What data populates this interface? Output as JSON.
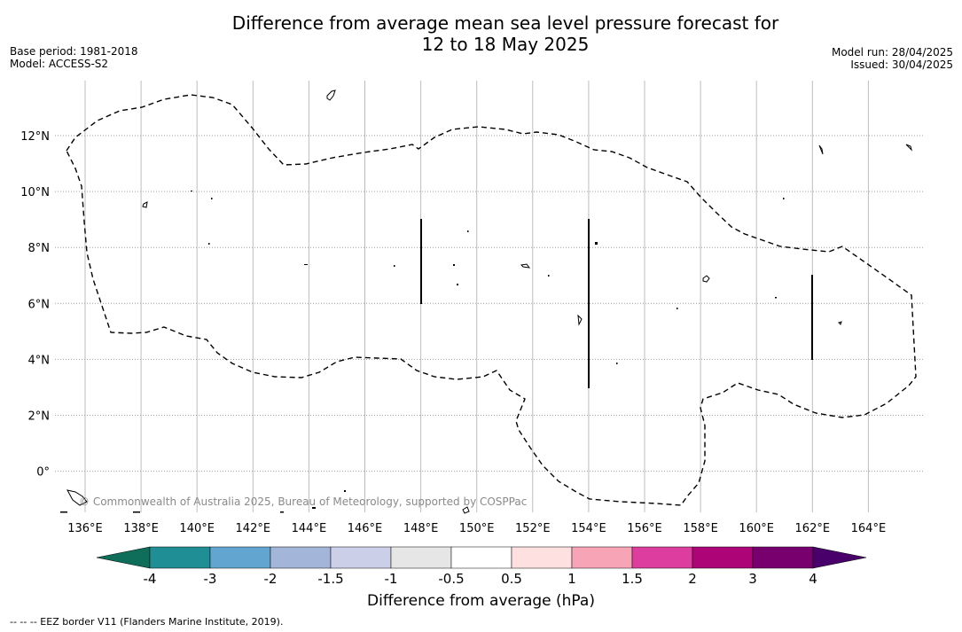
{
  "header": {
    "title_line1": "Difference from average mean sea level pressure forecast for",
    "title_line2": "12 to 18 May 2025",
    "base_period": "Base period: 1981-2018",
    "model": "Model: ACCESS-S2",
    "model_run": "Model run: 28/04/2025",
    "issued": "Issued: 30/04/2025"
  },
  "map": {
    "lon_ticks": [
      "136°E",
      "138°E",
      "140°E",
      "142°E",
      "144°E",
      "146°E",
      "148°E",
      "150°E",
      "152°E",
      "154°E",
      "156°E",
      "158°E",
      "160°E",
      "162°E",
      "164°E"
    ],
    "lat_ticks": [
      "12°N",
      "10°N",
      "8°N",
      "6°N",
      "4°N",
      "2°N",
      "0°"
    ],
    "copyright": "© Commonwealth of Australia 2025, Bureau of Meteorology, supported by COSPPac"
  },
  "colorbar": {
    "label": "Difference from average (hPa)",
    "ticks": [
      "-4",
      "-3",
      "-2",
      "-1.5",
      "-1",
      "-0.5",
      "0.5",
      "1",
      "1.5",
      "2",
      "3",
      "4"
    ],
    "colors": [
      "#208f95",
      "#62a5d0",
      "#a3b6d9",
      "#cccfe8",
      "#e6e6e6",
      "#ffffff",
      "#fde0df",
      "#f7a4b7",
      "#dc3d9e",
      "#ad0578",
      "#78006e"
    ],
    "extend_low_color": "#0e6e5a",
    "extend_high_color": "#49006a"
  },
  "footnote": "--  --  -- EEZ border V11 (Flanders Marine Institute, 2019)."
}
